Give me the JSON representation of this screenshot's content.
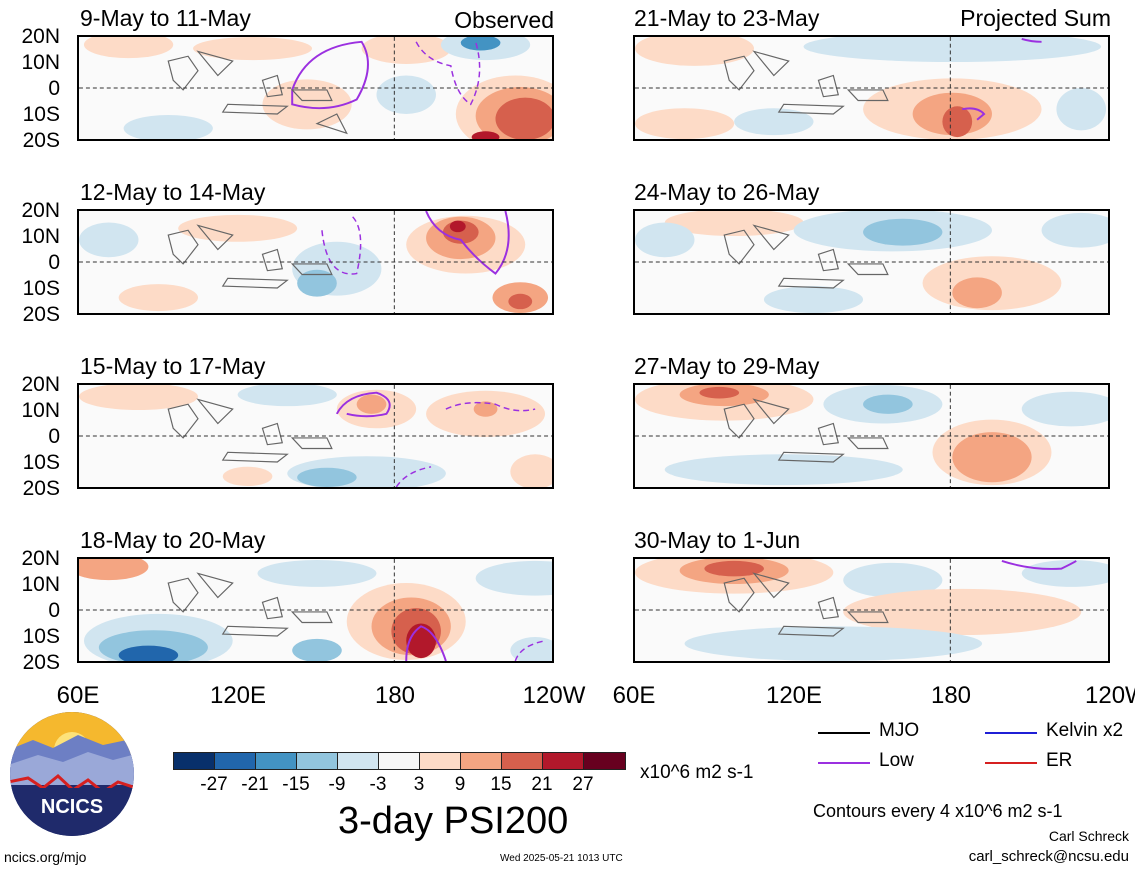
{
  "panels_left": [
    {
      "title": "9-May to 11-May",
      "corner": "Observed"
    },
    {
      "title": "12-May to 14-May",
      "corner": ""
    },
    {
      "title": "15-May to 17-May",
      "corner": ""
    },
    {
      "title": "18-May to 20-May",
      "corner": ""
    }
  ],
  "panels_right": [
    {
      "title": "21-May to 23-May",
      "corner": "Projected Sum"
    },
    {
      "title": "24-May to 26-May",
      "corner": ""
    },
    {
      "title": "27-May to 29-May",
      "corner": ""
    },
    {
      "title": "30-May to 1-Jun",
      "corner": ""
    }
  ],
  "lat_labels": [
    "20N",
    "10N",
    "0",
    "10S",
    "20S"
  ],
  "lon_labels": [
    "60E",
    "120E",
    "180",
    "120W"
  ],
  "colorbar": {
    "colors": [
      "#08306b",
      "#2166ac",
      "#4393c3",
      "#92c5de",
      "#d1e5f0",
      "#f7f7f7",
      "#fddbc7",
      "#f4a582",
      "#d6604d",
      "#b2182b",
      "#67001f"
    ],
    "tick_labels": [
      "-27",
      "-21",
      "-15",
      "-9",
      "-3",
      "3",
      "9",
      "15",
      "21",
      "27"
    ],
    "units": "x10^6 m2 s-1"
  },
  "main_title": "3-day PSI200",
  "legend": [
    {
      "label": "MJO",
      "color": "#000000"
    },
    {
      "label": "Kelvin x2",
      "color": "#1f1fd6"
    },
    {
      "label": "Low",
      "color": "#9b30e0"
    },
    {
      "label": "ER",
      "color": "#d62020"
    }
  ],
  "contour_note": "Contours every 4 x10^6 m2 s-1",
  "author": "Carl Schreck",
  "email": "carl_schreck@ncsu.edu",
  "url": "ncics.org/mjo",
  "timestamp": "Wed 2025-05-21 1013 UTC",
  "logo_text": "NCICS"
}
